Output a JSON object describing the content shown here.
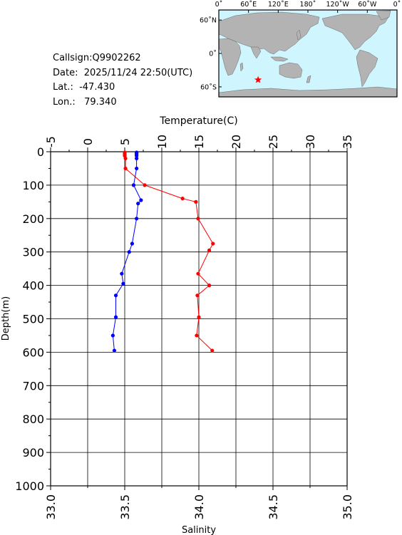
{
  "info": {
    "callsign": "Callsign:Q9902262",
    "date": "Date:  2025/11/24 22:50(UTC)",
    "lat": "Lat.:  -47.430",
    "lon": "Lon.:   79.340"
  },
  "map": {
    "lon_labels": [
      "0˚",
      "60˚E",
      "120˚E",
      "180˚",
      "120˚W",
      "60˚W",
      "0˚"
    ],
    "lat_labels": [
      "60˚N",
      "0˚",
      "60˚S"
    ],
    "marker": {
      "lon": 79.34,
      "lat": -47.43
    },
    "colors": {
      "ocean": "#cff6ff",
      "land": "#b3b3b3",
      "marker": "#ff0000"
    },
    "marker_icon": "star-icon"
  },
  "chart_data": {
    "type": "line",
    "y": {
      "label": "Depth(m)",
      "ticks": [
        "0",
        "100",
        "200",
        "300",
        "400",
        "500",
        "600",
        "700",
        "800",
        "900",
        "1000"
      ],
      "range": [
        0,
        1000
      ]
    },
    "x_top": {
      "label": "Temperature(C)",
      "ticks": [
        "-5",
        "0",
        "5",
        "10",
        "15",
        "20",
        "25",
        "30",
        "35"
      ],
      "range": [
        -5,
        35
      ]
    },
    "x_bottom": {
      "label": "Salinity",
      "ticks": [
        "33.0",
        "33.5",
        "34.0",
        "34.5",
        "35.0"
      ],
      "range": [
        33.0,
        35.0
      ]
    },
    "grid": true,
    "series": [
      {
        "axis": "temperature",
        "color": "#ff0000",
        "points": [
          [
            5.0,
            2
          ],
          [
            5.0,
            5
          ],
          [
            5.0,
            8
          ],
          [
            5.0,
            12
          ],
          [
            5.1,
            20
          ],
          [
            5.1,
            50
          ],
          [
            7.7,
            100
          ],
          [
            12.8,
            140
          ],
          [
            14.6,
            150
          ],
          [
            14.9,
            200
          ],
          [
            16.9,
            275
          ],
          [
            16.4,
            295
          ],
          [
            14.9,
            365
          ],
          [
            16.4,
            400
          ],
          [
            14.8,
            430
          ],
          [
            15.0,
            495
          ],
          [
            14.7,
            550
          ],
          [
            16.8,
            595
          ]
        ]
      },
      {
        "axis": "salinity",
        "color": "#0000ff",
        "points": [
          [
            33.58,
            2
          ],
          [
            33.58,
            5
          ],
          [
            33.58,
            8
          ],
          [
            33.58,
            12
          ],
          [
            33.58,
            20
          ],
          [
            33.58,
            50
          ],
          [
            33.56,
            100
          ],
          [
            33.61,
            145
          ],
          [
            33.59,
            155
          ],
          [
            33.58,
            200
          ],
          [
            33.55,
            275
          ],
          [
            33.53,
            300
          ],
          [
            33.48,
            365
          ],
          [
            33.49,
            395
          ],
          [
            33.44,
            430
          ],
          [
            33.44,
            495
          ],
          [
            33.42,
            550
          ],
          [
            33.43,
            595
          ]
        ]
      }
    ]
  }
}
